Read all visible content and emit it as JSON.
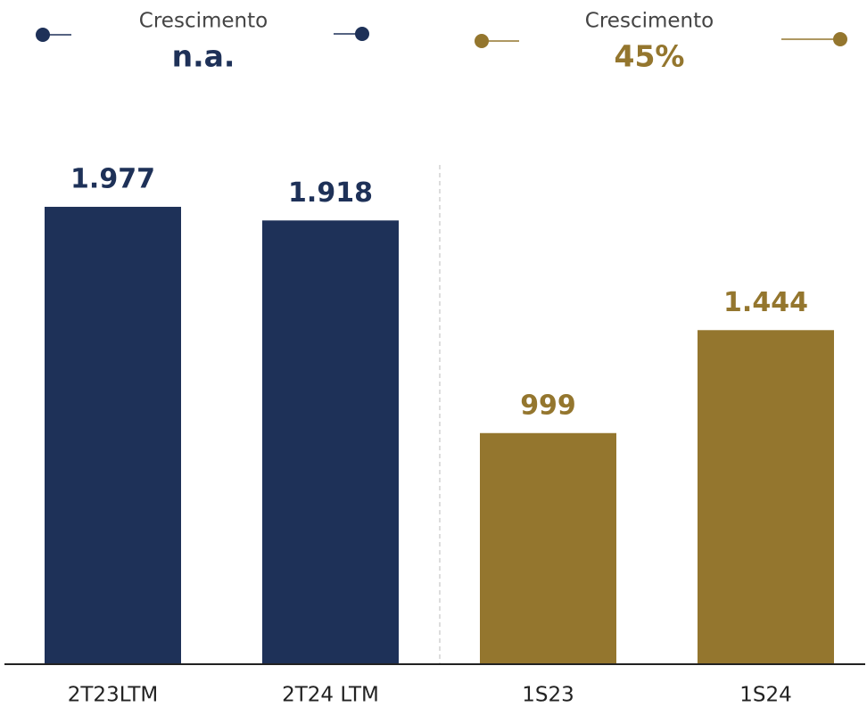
{
  "chart_data": {
    "type": "bar",
    "categories": [
      "2T23LTM",
      "2T24 LTM",
      "1S23",
      "1S24"
    ],
    "values": [
      1977,
      1918,
      999,
      1444
    ],
    "value_labels": [
      "1.977",
      "1.918",
      "999",
      "1.444"
    ],
    "colors": [
      "#1e3158",
      "#1e3158",
      "#94762e",
      "#94762e"
    ],
    "ylim": [
      0,
      2000
    ],
    "annotations": [
      {
        "title": "Crescimento",
        "text": "n.a.",
        "color": "#1e3158"
      },
      {
        "title": "Crescimento",
        "text": "45%",
        "color": "#94762e"
      }
    ]
  }
}
